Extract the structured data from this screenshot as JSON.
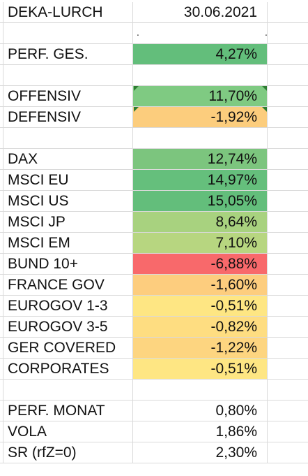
{
  "sheet": {
    "rows": [
      {
        "label": "DEKA-LURCH",
        "value": "30.06.2021",
        "fill": ""
      },
      {
        "label": "",
        "value": "",
        "fill": "",
        "dots": [
          ".",
          "."
        ]
      },
      {
        "label": "PERF. GES.",
        "value": "4,27%",
        "fill": "#63be7b"
      },
      {
        "label": "",
        "value": "",
        "fill": ""
      },
      {
        "label": "OFFENSIV",
        "value": "11,70%",
        "fill": "#7fca82",
        "flags": true
      },
      {
        "label": "DEFENSIV",
        "value": "-1,92%",
        "fill": "#fccd7d",
        "flags": true
      },
      {
        "label": "",
        "value": "",
        "fill": ""
      },
      {
        "label": "DAX",
        "value": "12,74%",
        "fill": "#7cc57e"
      },
      {
        "label": "MSCI EU",
        "value": "14,97%",
        "fill": "#65bf7c"
      },
      {
        "label": "MSCI US",
        "value": "15,05%",
        "fill": "#63be7b"
      },
      {
        "label": "MSCI JP",
        "value": "8,64%",
        "fill": "#a8d27f"
      },
      {
        "label": "MSCI EM",
        "value": "7,10%",
        "fill": "#b7d680"
      },
      {
        "label": "BUND 10+",
        "value": "-6,88%",
        "fill": "#f8696b"
      },
      {
        "label": "FRANCE GOV",
        "value": "-1,60%",
        "fill": "#fdcd7e"
      },
      {
        "label": "EUROGOV 1-3",
        "value": "-0,51%",
        "fill": "#fee683"
      },
      {
        "label": "EUROGOV 3-5",
        "value": "-0,82%",
        "fill": "#fedd81"
      },
      {
        "label": "GER COVERED",
        "value": "-1,22%",
        "fill": "#fdd580"
      },
      {
        "label": "CORPORATES",
        "value": "-0,51%",
        "fill": "#fee683"
      },
      {
        "label": "",
        "value": "",
        "fill": ""
      },
      {
        "label": "PERF. MONAT",
        "value": "0,80%",
        "fill": ""
      },
      {
        "label": "VOLA",
        "value": "1,86%",
        "fill": ""
      },
      {
        "label": "SR (rfZ=0)",
        "value": "2,30%",
        "fill": ""
      }
    ],
    "comment_indicator_color": "#2e7d32"
  }
}
